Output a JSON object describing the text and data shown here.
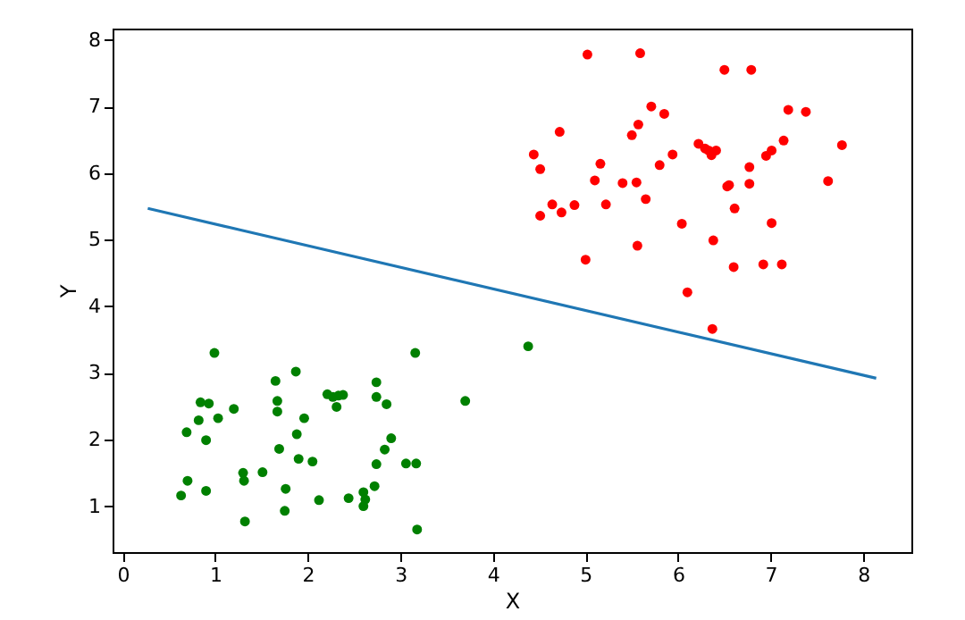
{
  "chart_data": {
    "type": "scatter",
    "xlabel": "X",
    "ylabel": "Y",
    "xlim": [
      -0.11,
      8.52
    ],
    "ylim": [
      0.31,
      8.17
    ],
    "xticks": [
      0,
      1,
      2,
      3,
      4,
      5,
      6,
      7,
      8
    ],
    "yticks": [
      1,
      2,
      3,
      4,
      5,
      6,
      7,
      8
    ],
    "grid": false,
    "series": [
      {
        "marker": "circle",
        "color": "#008000",
        "x": [
          0.63,
          0.69,
          0.7,
          0.82,
          0.84,
          0.9,
          0.9,
          0.93,
          0.99,
          1.03,
          1.2,
          1.3,
          1.31,
          1.32,
          1.51,
          1.65,
          1.67,
          1.67,
          1.69,
          1.75,
          1.76,
          1.87,
          1.88,
          1.9,
          1.96,
          2.05,
          2.12,
          2.21,
          2.27,
          2.31,
          2.33,
          2.38,
          2.44,
          2.6,
          2.6,
          2.62,
          2.72,
          2.74,
          2.74,
          2.74,
          2.83,
          2.85,
          2.9,
          3.06,
          3.16,
          3.17,
          3.18,
          3.7,
          4.38
        ],
        "values": [
          1.16,
          2.11,
          1.38,
          2.29,
          2.56,
          1.23,
          1.99,
          2.54,
          3.3,
          2.32,
          2.46,
          1.5,
          1.38,
          0.77,
          1.51,
          2.88,
          2.58,
          2.42,
          1.86,
          0.93,
          1.26,
          3.02,
          2.08,
          1.71,
          2.32,
          1.67,
          1.09,
          2.68,
          2.64,
          2.49,
          2.66,
          2.67,
          1.12,
          1.21,
          1.0,
          1.1,
          1.3,
          2.86,
          2.64,
          1.63,
          1.85,
          2.53,
          2.02,
          1.64,
          3.3,
          1.64,
          0.65,
          2.58,
          3.4
        ]
      },
      {
        "marker": "circle",
        "color": "#ff0000",
        "x": [
          4.44,
          4.51,
          4.51,
          4.64,
          4.72,
          4.74,
          4.88,
          5.0,
          5.02,
          5.1,
          5.16,
          5.22,
          5.4,
          5.5,
          5.55,
          5.56,
          5.57,
          5.59,
          5.65,
          5.71,
          5.8,
          5.85,
          5.94,
          6.04,
          6.1,
          6.22,
          6.29,
          6.33,
          6.36,
          6.37,
          6.38,
          6.41,
          6.5,
          6.53,
          6.55,
          6.6,
          6.61,
          6.77,
          6.77,
          6.79,
          6.92,
          6.95,
          7.01,
          7.01,
          7.12,
          7.14,
          7.19,
          7.38,
          7.62,
          7.77
        ],
        "values": [
          6.28,
          6.06,
          5.36,
          5.53,
          6.62,
          5.41,
          5.52,
          4.7,
          7.78,
          5.89,
          6.14,
          5.53,
          5.85,
          6.57,
          5.86,
          4.91,
          6.73,
          7.8,
          5.61,
          7.0,
          6.12,
          6.89,
          6.28,
          5.24,
          4.21,
          6.44,
          6.37,
          6.34,
          6.27,
          3.66,
          4.99,
          6.34,
          7.55,
          5.8,
          5.82,
          4.59,
          5.47,
          5.84,
          6.09,
          7.55,
          4.63,
          6.26,
          6.34,
          5.25,
          4.63,
          6.49,
          6.95,
          6.92,
          5.88,
          6.42
        ]
      },
      {
        "type": "line",
        "marker": "none",
        "color": "#1f77b4",
        "x": [
          0.27,
          8.14
        ],
        "values": [
          5.47,
          2.92
        ]
      }
    ]
  }
}
